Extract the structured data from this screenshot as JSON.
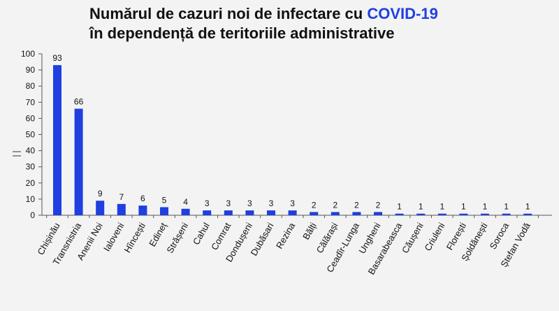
{
  "title": {
    "line1_prefix": "Numărul de cazuri noi de infectare cu ",
    "line1_accent": "COVID-19",
    "line2": "în dependență de teritoriile administrative"
  },
  "colors": {
    "bar": "#1f3fe0",
    "accent": "#1f3fe0",
    "axis": "#555555",
    "text": "#111111"
  },
  "chart_data": {
    "type": "bar",
    "categories": [
      "Chișinău",
      "Transnistria",
      "Anenii Noi",
      "Ialoveni",
      "Hîncești",
      "Edineț",
      "Strășeni",
      "Cahul",
      "Comrat",
      "Dondușeni",
      "Dubăsari",
      "Rezina",
      "Bălți",
      "Călărași",
      "Ceadîr-Lunga",
      "Ungheni",
      "Basarabeasca",
      "Căușeni",
      "Criuleni",
      "Florești",
      "Șoldănești",
      "Soroca",
      "Ștefan Vodă"
    ],
    "values": [
      93,
      66,
      9,
      7,
      6,
      5,
      4,
      3,
      3,
      3,
      3,
      3,
      2,
      2,
      2,
      2,
      1,
      1,
      1,
      1,
      1,
      1,
      1
    ],
    "ylim": [
      0,
      100
    ],
    "yticks": [
      0,
      10,
      20,
      30,
      40,
      50,
      60,
      70,
      80,
      90,
      100
    ],
    "data_labels": true,
    "grid": false,
    "legend": "none"
  }
}
